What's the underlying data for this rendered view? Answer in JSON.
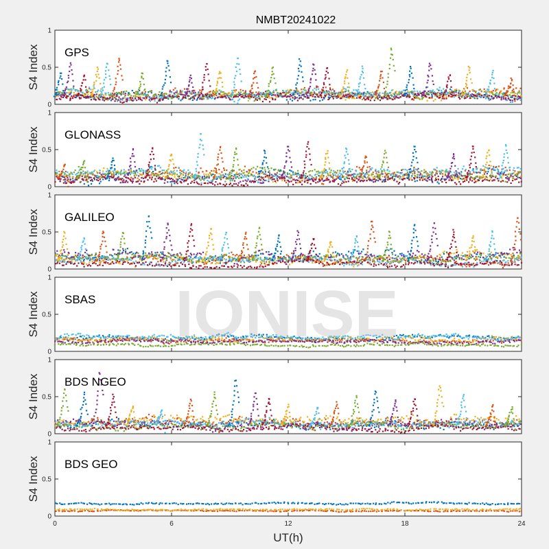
{
  "figure": {
    "title": "NMBT20241022",
    "watermark": "IONISE",
    "xlabel": "UT(h)",
    "xticks": [
      "0",
      "6",
      "12",
      "18",
      "24"
    ],
    "yticks": [
      "0",
      "0.5",
      "1"
    ]
  },
  "colors": [
    "#0072bd",
    "#d95319",
    "#edb120",
    "#7e2f8e",
    "#77ac30",
    "#4dbeee",
    "#a2142f"
  ],
  "chart_data": [
    {
      "type": "scatter",
      "panel_label": "GPS",
      "ylabel": "S4 Index",
      "xlim": [
        0,
        24
      ],
      "ylim": [
        0,
        1
      ],
      "spikes": [
        [
          0.3,
          0.42
        ],
        [
          0.8,
          0.55
        ],
        [
          1.5,
          0.4
        ],
        [
          2.2,
          0.5
        ],
        [
          2.7,
          0.55
        ],
        [
          3.3,
          0.62
        ],
        [
          4.5,
          0.42
        ],
        [
          5.8,
          0.6
        ],
        [
          7.0,
          0.38
        ],
        [
          7.8,
          0.55
        ],
        [
          8.5,
          0.45
        ],
        [
          9.4,
          0.62
        ],
        [
          10.3,
          0.45
        ],
        [
          11.2,
          0.5
        ],
        [
          12.6,
          0.6
        ],
        [
          13.3,
          0.55
        ],
        [
          14.0,
          0.5
        ],
        [
          15.0,
          0.45
        ],
        [
          15.8,
          0.5
        ],
        [
          16.8,
          0.45
        ],
        [
          17.3,
          0.76
        ],
        [
          18.3,
          0.5
        ],
        [
          19.3,
          0.55
        ],
        [
          20.3,
          0.4
        ],
        [
          21.3,
          0.5
        ],
        [
          22.5,
          0.45
        ],
        [
          23.5,
          0.35
        ]
      ],
      "series": [
        {
          "base": 0.12,
          "var": 0.06
        },
        {
          "base": 0.14,
          "var": 0.07
        },
        {
          "base": 0.13,
          "var": 0.06
        },
        {
          "base": 0.1,
          "var": 0.05
        },
        {
          "base": 0.14,
          "var": 0.06
        },
        {
          "base": 0.15,
          "var": 0.07
        },
        {
          "base": 0.08,
          "var": 0.05
        }
      ]
    },
    {
      "type": "scatter",
      "panel_label": "GLONASS",
      "ylabel": "S4 Index",
      "xlim": [
        0,
        24
      ],
      "ylim": [
        0,
        1
      ],
      "spikes": [
        [
          0.5,
          0.3
        ],
        [
          1.5,
          0.35
        ],
        [
          3.0,
          0.38
        ],
        [
          4.0,
          0.5
        ],
        [
          5.0,
          0.52
        ],
        [
          6.0,
          0.45
        ],
        [
          7.5,
          0.72
        ],
        [
          8.5,
          0.55
        ],
        [
          9.3,
          0.52
        ],
        [
          10.8,
          0.48
        ],
        [
          12.0,
          0.55
        ],
        [
          13.0,
          0.6
        ],
        [
          14.0,
          0.48
        ],
        [
          15.0,
          0.52
        ],
        [
          16.0,
          0.42
        ],
        [
          17.0,
          0.48
        ],
        [
          18.5,
          0.55
        ],
        [
          20.5,
          0.45
        ],
        [
          21.5,
          0.55
        ],
        [
          22.3,
          0.5
        ],
        [
          23.2,
          0.55
        ]
      ],
      "series": [
        {
          "base": 0.15,
          "var": 0.08
        },
        {
          "base": 0.17,
          "var": 0.08
        },
        {
          "base": 0.13,
          "var": 0.07
        },
        {
          "base": 0.12,
          "var": 0.06
        },
        {
          "base": 0.16,
          "var": 0.07
        },
        {
          "base": 0.18,
          "var": 0.08
        },
        {
          "base": 0.08,
          "var": 0.05
        }
      ]
    },
    {
      "type": "scatter",
      "panel_label": "GALILEO",
      "ylabel": "S4 Index",
      "xlim": [
        0,
        24
      ],
      "ylim": [
        0,
        1
      ],
      "spikes": [
        [
          0.5,
          0.5
        ],
        [
          1.5,
          0.42
        ],
        [
          2.5,
          0.52
        ],
        [
          3.5,
          0.5
        ],
        [
          4.8,
          0.72
        ],
        [
          5.8,
          0.62
        ],
        [
          7.0,
          0.6
        ],
        [
          8.0,
          0.55
        ],
        [
          8.8,
          0.5
        ],
        [
          9.8,
          0.48
        ],
        [
          10.5,
          0.55
        ],
        [
          11.5,
          0.45
        ],
        [
          12.5,
          0.5
        ],
        [
          13.3,
          0.42
        ],
        [
          14.2,
          0.38
        ],
        [
          15.5,
          0.45
        ],
        [
          16.3,
          0.65
        ],
        [
          17.2,
          0.5
        ],
        [
          18.5,
          0.6
        ],
        [
          19.5,
          0.62
        ],
        [
          20.5,
          0.52
        ],
        [
          21.5,
          0.45
        ],
        [
          22.5,
          0.5
        ],
        [
          23.8,
          0.7
        ]
      ],
      "series": [
        {
          "base": 0.16,
          "var": 0.07
        },
        {
          "base": 0.12,
          "var": 0.06
        },
        {
          "base": 0.14,
          "var": 0.06
        },
        {
          "base": 0.18,
          "var": 0.08
        },
        {
          "base": 0.15,
          "var": 0.06
        },
        {
          "base": 0.12,
          "var": 0.05
        },
        {
          "base": 0.07,
          "var": 0.04
        }
      ]
    },
    {
      "type": "scatter",
      "panel_label": "SBAS",
      "ylabel": "S4 Index",
      "xlim": [
        0,
        24
      ],
      "ylim": [
        0,
        1
      ],
      "spikes": [],
      "series": [
        {
          "base": 0.18,
          "var": 0.035
        },
        {
          "base": 0.15,
          "var": 0.03
        },
        {
          "base": 0.17,
          "var": 0.035
        },
        {
          "base": 0.14,
          "var": 0.03
        },
        {
          "base": 0.09,
          "var": 0.02
        },
        {
          "base": 0.19,
          "var": 0.035
        }
      ]
    },
    {
      "type": "scatter",
      "panel_label": "BDS NGEO",
      "ylabel": "S4 Index",
      "xlim": [
        0,
        24
      ],
      "ylim": [
        0,
        1
      ],
      "spikes": [
        [
          0.5,
          0.6
        ],
        [
          1.5,
          0.55
        ],
        [
          2.3,
          0.82
        ],
        [
          3.0,
          0.52
        ],
        [
          4.0,
          0.38
        ],
        [
          5.5,
          0.32
        ],
        [
          7.0,
          0.45
        ],
        [
          8.2,
          0.55
        ],
        [
          9.3,
          0.72
        ],
        [
          10.3,
          0.55
        ],
        [
          11.0,
          0.48
        ],
        [
          12.0,
          0.38
        ],
        [
          13.5,
          0.35
        ],
        [
          14.5,
          0.42
        ],
        [
          15.5,
          0.5
        ],
        [
          16.5,
          0.58
        ],
        [
          17.5,
          0.45
        ],
        [
          18.5,
          0.48
        ],
        [
          19.8,
          0.65
        ],
        [
          21.0,
          0.52
        ],
        [
          22.5,
          0.38
        ],
        [
          23.5,
          0.35
        ]
      ],
      "series": [
        {
          "base": 0.12,
          "var": 0.06
        },
        {
          "base": 0.15,
          "var": 0.07
        },
        {
          "base": 0.17,
          "var": 0.07
        },
        {
          "base": 0.13,
          "var": 0.06
        },
        {
          "base": 0.1,
          "var": 0.05
        },
        {
          "base": 0.14,
          "var": 0.05
        },
        {
          "base": 0.08,
          "var": 0.04
        }
      ]
    },
    {
      "type": "scatter",
      "panel_label": "BDS GEO",
      "ylabel": "S4 Index",
      "xlim": [
        0,
        24
      ],
      "ylim": [
        0,
        1
      ],
      "spikes": [],
      "series": [
        {
          "base": 0.17,
          "var": 0.015
        },
        {
          "base": 0.07,
          "var": 0.01
        },
        {
          "base": 0.09,
          "var": 0.012
        }
      ]
    }
  ]
}
